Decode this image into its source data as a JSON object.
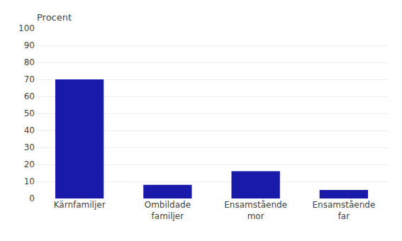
{
  "chart_data": {
    "type": "bar",
    "ylabel": "Procent",
    "categories": [
      "Kärnfamiljer",
      "Ombildade\nfamiljer",
      "Ensamstående\nmor",
      "Ensamstående\nfar"
    ],
    "values": [
      70,
      8,
      16,
      5
    ],
    "color": "#1a1aaa",
    "ylim": [
      0,
      100
    ],
    "yticks": [
      0,
      10,
      20,
      30,
      40,
      50,
      60,
      70,
      80,
      90,
      100
    ],
    "grid": true
  }
}
